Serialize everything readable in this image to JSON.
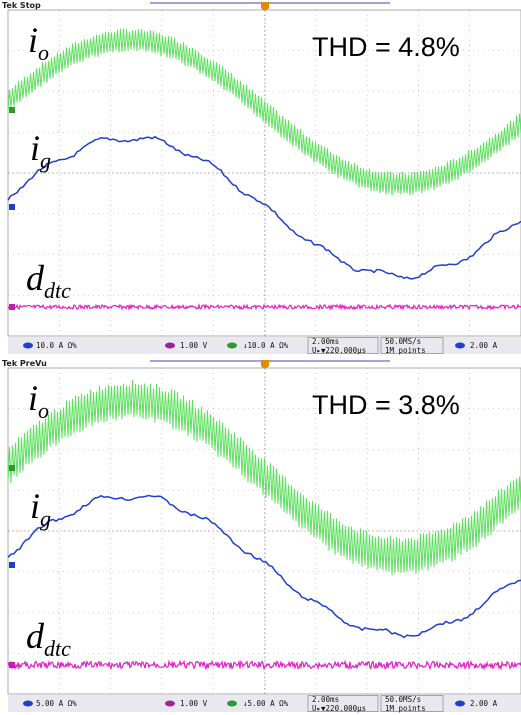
{
  "panels": [
    {
      "status": "Tek Stop",
      "thd": "THD = 4.8%",
      "labels": {
        "io": {
          "base": "i",
          "sub": "o"
        },
        "ig": {
          "base": "i",
          "sub": "g"
        },
        "ddtc": {
          "base": "d",
          "sub": "dtc"
        }
      },
      "readouts": [
        "10.0 A Ω%",
        "1.00 V",
        "↓10.0 A Ω%",
        "2.00ms",
        "U▸▼220.000µs",
        "50.0MS/s",
        "1M points",
        "2.00 A"
      ]
    },
    {
      "status": "Tek PreVu",
      "thd": "THD = 3.8%",
      "labels": {
        "io": {
          "base": "i",
          "sub": "o"
        },
        "ig": {
          "base": "i",
          "sub": "g"
        },
        "ddtc": {
          "base": "d",
          "sub": "dtc"
        }
      },
      "readouts": [
        "5.00 A Ω%",
        "1.00 V",
        "↓5.00 A Ω%",
        "2.00ms",
        "U▸▼220.000µs",
        "50.0MS/s",
        "1M points",
        "2.00 A"
      ]
    }
  ]
}
